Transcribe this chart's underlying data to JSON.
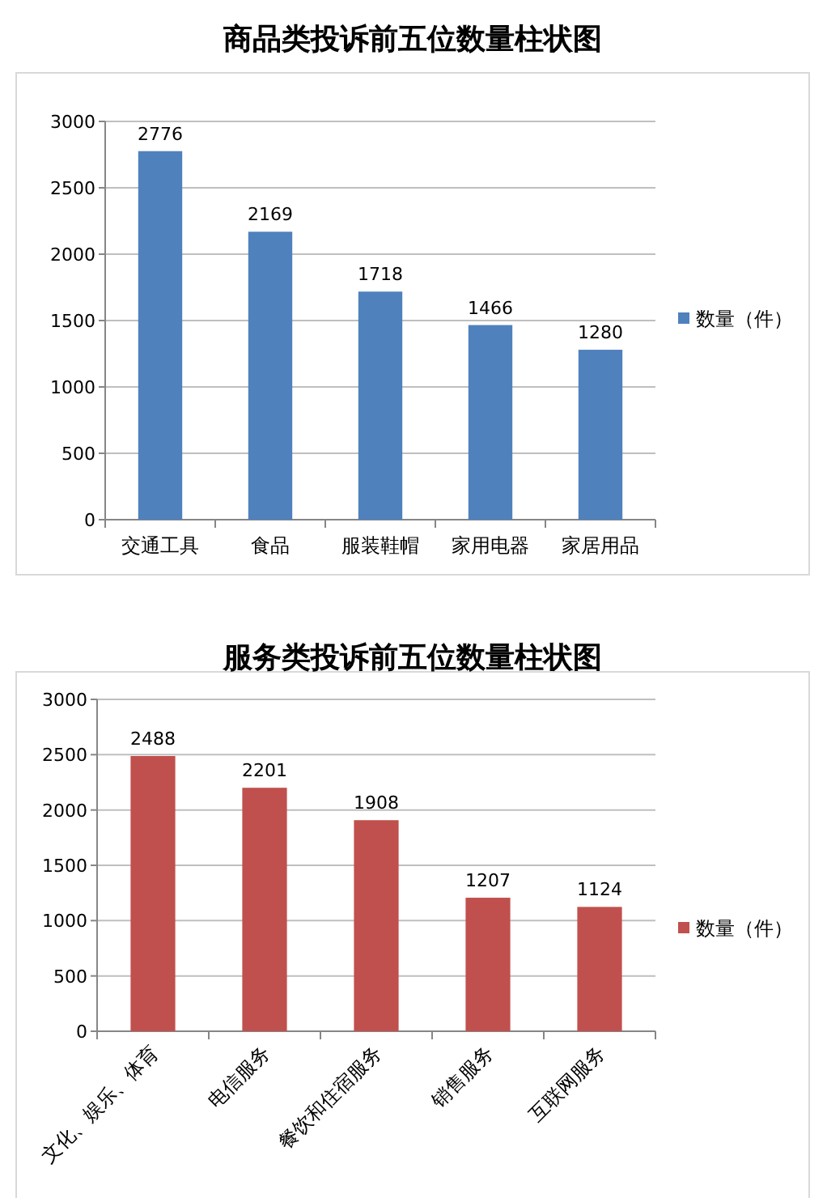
{
  "chart_data": [
    {
      "type": "bar",
      "title": "商品类投诉前五位数量柱状图",
      "categories": [
        "交通工具",
        "食品",
        "服装鞋帽",
        "家用电器",
        "家居用品"
      ],
      "series": [
        {
          "name": "数量（件）",
          "color": "#4f81bd",
          "values": [
            2776,
            2169,
            1718,
            1466,
            1280
          ]
        }
      ],
      "ylim": [
        0,
        3000
      ],
      "yticks": [
        0,
        500,
        1000,
        1500,
        2000,
        2500,
        3000
      ],
      "grid": "y",
      "legend": "right",
      "data_labels": true
    },
    {
      "type": "bar",
      "title": "服务类投诉前五位数量柱状图",
      "categories": [
        "文化、娱乐、体育",
        "电信服务",
        "餐饮和住宿服务",
        "销售服务",
        "互联网服务"
      ],
      "series": [
        {
          "name": "数量（件）",
          "color": "#c0504d",
          "values": [
            2488,
            2201,
            1908,
            1207,
            1124
          ]
        }
      ],
      "ylim": [
        0,
        3000
      ],
      "yticks": [
        0,
        500,
        1000,
        1500,
        2000,
        2500,
        3000
      ],
      "grid": "y",
      "legend": "right",
      "data_labels": true
    }
  ]
}
